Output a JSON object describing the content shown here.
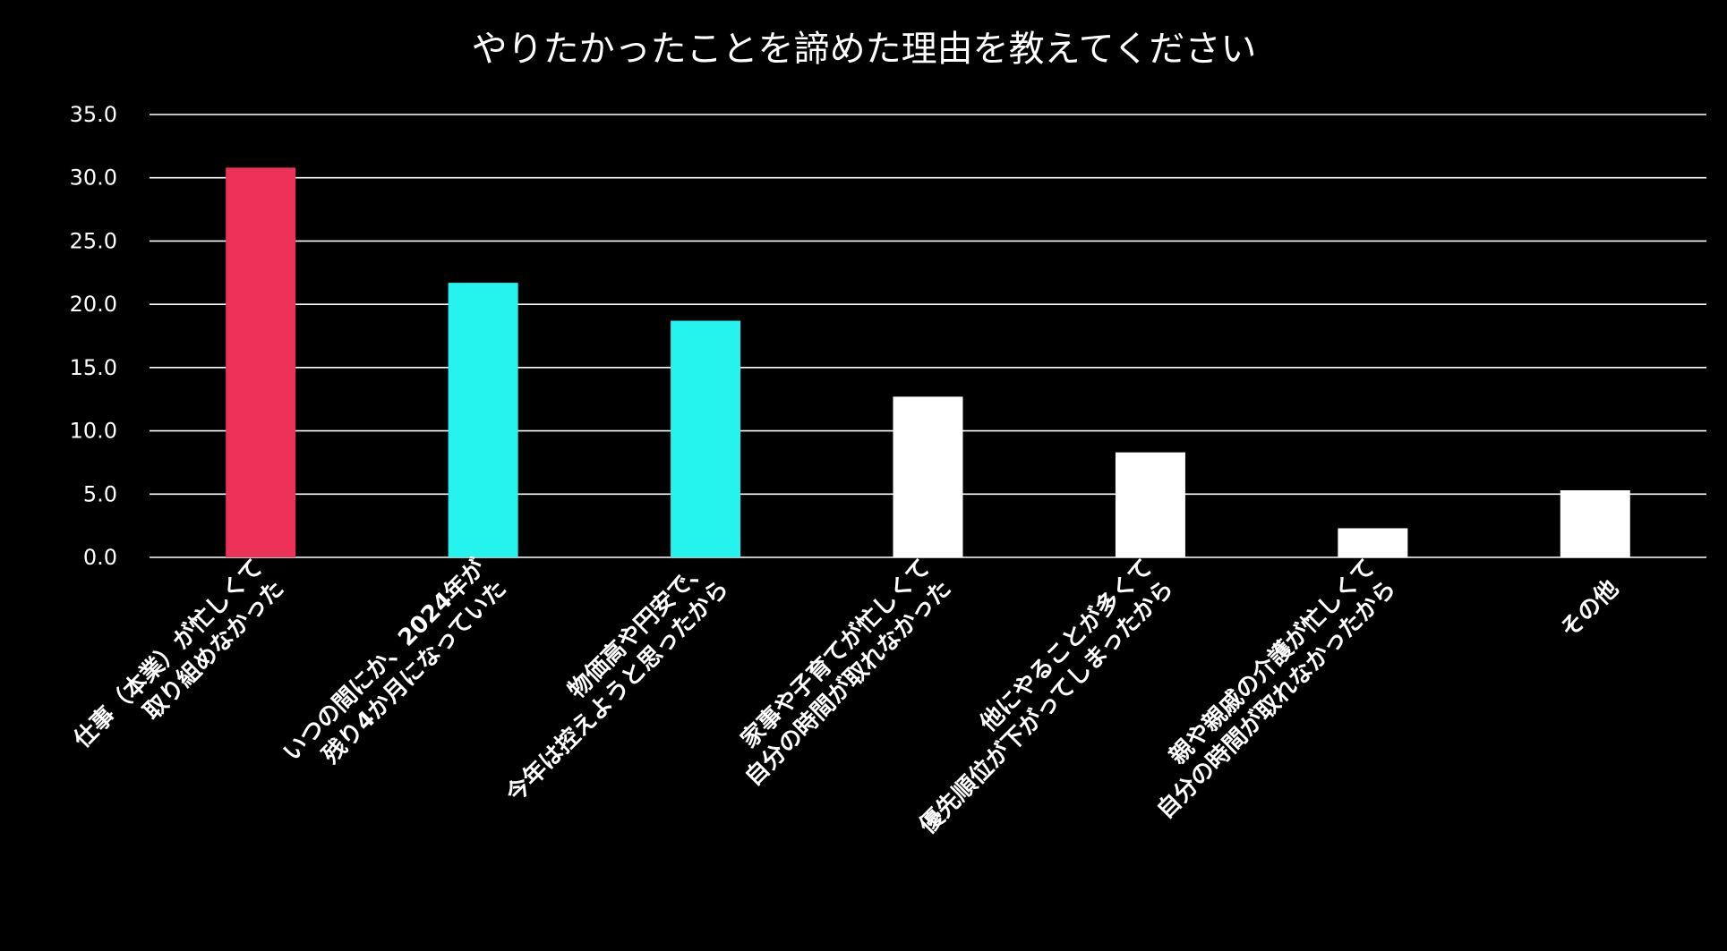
{
  "chart_data": {
    "type": "bar",
    "title": "やりたかったことを諦めた理由を教えてください",
    "xlabel": "",
    "ylabel": "",
    "ylim": [
      0,
      35
    ],
    "yticks": [
      "0.0",
      "5.0",
      "10.0",
      "15.0",
      "20.0",
      "25.0",
      "30.0",
      "35.0"
    ],
    "grid": true,
    "legend": "none",
    "background_color": "#000000",
    "text_color": "#ffffff",
    "categories": [
      [
        "仕事（本業）が忙しくて",
        "取り組めなかった"
      ],
      [
        "いつの間にか、2024年が",
        "残り4か月になっていた"
      ],
      [
        "物価高や円安で、",
        "今年は控えようと思ったから"
      ],
      [
        "家事や子育てが忙しくて",
        "自分の時間が取れなかった"
      ],
      [
        "他にやることが多くて",
        "優先順位が下がってしまったから"
      ],
      [
        "親や親戚の介護が忙しくて",
        "自分の時間が取れなかったから"
      ],
      [
        "その他"
      ]
    ],
    "values": [
      30.8,
      21.7,
      18.7,
      12.7,
      8.3,
      2.3,
      5.3
    ],
    "bar_colors": [
      "#ee3158",
      "#25f4ee",
      "#25f4ee",
      "#ffffff",
      "#ffffff",
      "#ffffff",
      "#ffffff"
    ]
  }
}
